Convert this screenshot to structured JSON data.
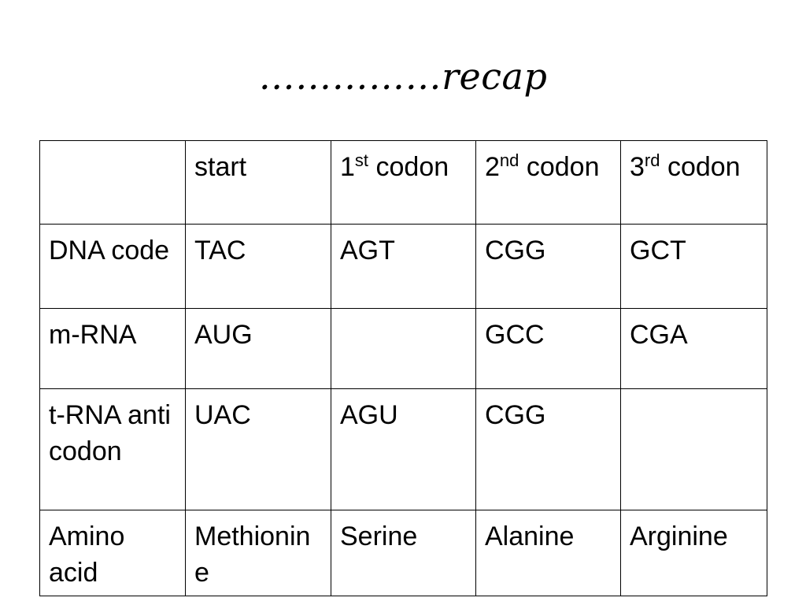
{
  "slide": {
    "title": "……………recap"
  },
  "table": {
    "header": {
      "corner": "",
      "start": "start",
      "codon1_num": "1",
      "codon1_sup": "st",
      "codon1_word": "codon",
      "codon2_num": "2",
      "codon2_sup": "nd",
      "codon2_word": "codon",
      "codon3_num": "3",
      "codon3_sup": "rd",
      "codon3_word": "codon"
    },
    "rows": [
      {
        "label": "DNA code",
        "cells": [
          "TAC",
          "AGT",
          "CGG",
          "GCT"
        ]
      },
      {
        "label": "m-RNA",
        "cells": [
          "AUG",
          "",
          "GCC",
          "CGA"
        ]
      },
      {
        "label": "t-RNA anticodon",
        "cells": [
          "UAC",
          "AGU",
          "CGG",
          ""
        ]
      },
      {
        "label": "Amino acid",
        "cells": [
          "Methionine",
          "Serine",
          "Alanine",
          "Arginine"
        ]
      }
    ]
  }
}
